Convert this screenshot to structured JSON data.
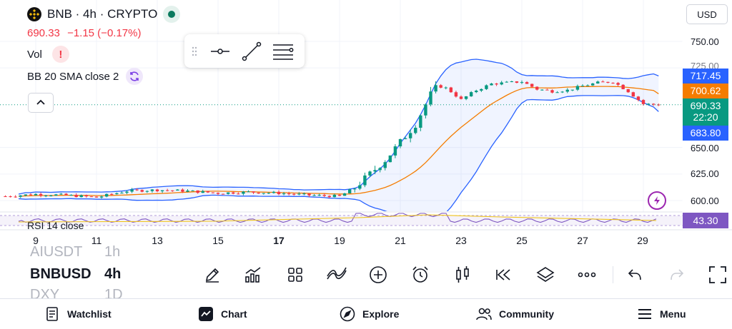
{
  "header": {
    "symbol_title": "BNB · 4h · CRYPTO",
    "last_price": "690.33",
    "change": "−1.15 (−0.17%)",
    "vol_label": "Vol",
    "indicator_label": "BB 20 SMA close 2",
    "rsi_label": "RSI 14 close",
    "currency": "USD"
  },
  "price_axis": {
    "ticks": [
      "750.00",
      "725.00",
      "650.00",
      "625.00",
      "600.00"
    ],
    "tags": [
      {
        "label": "717.45",
        "color": "#2962ff"
      },
      {
        "label": "700.62",
        "color": "#f57c00"
      },
      {
        "label": "690.33",
        "sub": "22:20",
        "color": "#089981"
      },
      {
        "label": "683.80",
        "color": "#2962ff"
      },
      {
        "label": "43.30",
        "color": "#7e57c2"
      }
    ]
  },
  "time_axis": {
    "ticks": [
      "9",
      "11",
      "13",
      "15",
      "17",
      "19",
      "21",
      "23",
      "25",
      "27",
      "29"
    ],
    "bold_tick": "17"
  },
  "symbol_list": {
    "items": [
      {
        "symbol": "AIUSDT",
        "interval": "1h",
        "state": "faded"
      },
      {
        "symbol": "BNBUSD",
        "interval": "4h",
        "state": "active"
      },
      {
        "symbol": "DXY",
        "interval": "1D",
        "state": "faded"
      }
    ]
  },
  "toolbar": {
    "icons": [
      "pencil-icon",
      "indicators-icon",
      "layout-grid-icon",
      "trend-icon",
      "plus-circle-icon",
      "alarm-icon",
      "candles-icon",
      "replay-icon",
      "layers-icon",
      "more-icon",
      "undo-icon",
      "redo-icon",
      "fullscreen-icon"
    ]
  },
  "nav": {
    "watchlist": "Watchlist",
    "chart": "Chart",
    "explore": "Explore",
    "community": "Community",
    "menu": "Menu"
  },
  "colors": {
    "up": "#089981",
    "down": "#f23645",
    "bb_band": "#2962ff",
    "bb_basis": "#f57c00",
    "rsi": "#7e57c2"
  },
  "chart_data": {
    "type": "candlestick",
    "title": "BNB · 4h · CRYPTO",
    "y_axis_ticks": [
      600,
      625,
      650,
      725,
      750
    ],
    "x_axis_ticks": [
      "9",
      "11",
      "13",
      "15",
      "17",
      "19",
      "21",
      "23",
      "25",
      "27",
      "29"
    ],
    "ylim": [
      593,
      761
    ],
    "price_series": [
      {
        "day": 8.0,
        "price": 604
      },
      {
        "day": 9.0,
        "price": 606
      },
      {
        "day": 10.0,
        "price": 605
      },
      {
        "day": 11.0,
        "price": 603
      },
      {
        "day": 12.0,
        "price": 609
      },
      {
        "day": 13.0,
        "price": 610
      },
      {
        "day": 14.0,
        "price": 609
      },
      {
        "day": 15.0,
        "price": 607
      },
      {
        "day": 16.0,
        "price": 608
      },
      {
        "day": 17.0,
        "price": 607
      },
      {
        "day": 18.0,
        "price": 605
      },
      {
        "day": 19.0,
        "price": 604
      },
      {
        "day": 19.5,
        "price": 612
      },
      {
        "day": 20.0,
        "price": 625
      },
      {
        "day": 20.5,
        "price": 638
      },
      {
        "day": 21.0,
        "price": 655
      },
      {
        "day": 21.5,
        "price": 672
      },
      {
        "day": 22.0,
        "price": 700
      },
      {
        "day": 22.3,
        "price": 710
      },
      {
        "day": 22.7,
        "price": 702
      },
      {
        "day": 23.0,
        "price": 695
      },
      {
        "day": 23.5,
        "price": 704
      },
      {
        "day": 24.0,
        "price": 710
      },
      {
        "day": 24.5,
        "price": 711
      },
      {
        "day": 25.0,
        "price": 712
      },
      {
        "day": 25.5,
        "price": 705
      },
      {
        "day": 26.0,
        "price": 703
      },
      {
        "day": 26.5,
        "price": 704
      },
      {
        "day": 27.0,
        "price": 708
      },
      {
        "day": 27.5,
        "price": 711
      },
      {
        "day": 28.0,
        "price": 712
      },
      {
        "day": 28.5,
        "price": 703
      },
      {
        "day": 29.0,
        "price": 691
      },
      {
        "day": 29.5,
        "price": 690.33
      }
    ],
    "bb_upper_last": 717.45,
    "bb_basis_last": 700.62,
    "bb_lower_last": 683.8,
    "last_close": 690.33,
    "rsi_last": 43.3
  }
}
